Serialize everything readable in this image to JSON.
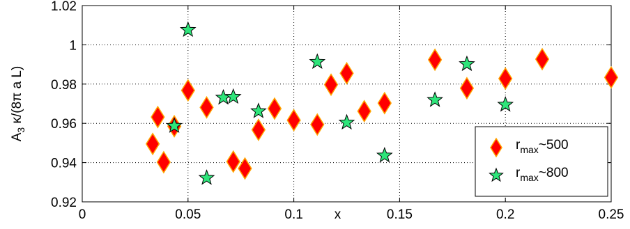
{
  "chart_data": {
    "type": "scatter",
    "title": "",
    "xlabel": "x",
    "ylabel": "A₃ κ/(8π a L)",
    "xlim": [
      0,
      0.25
    ],
    "ylim": [
      0.92,
      1.02
    ],
    "grid": true,
    "legend_position": "bottom-right",
    "x_ticks": [
      "0",
      "0.05",
      "0.1",
      "0.15",
      "0.2",
      "0.25"
    ],
    "y_ticks": [
      "0.92",
      "0.94",
      "0.96",
      "0.98",
      "1",
      "1.02"
    ],
    "series": [
      {
        "name": "r_max~500",
        "marker": "diamond",
        "color": "#ff0000",
        "edge_color": "#ffa500",
        "points": [
          [
            0.0333,
            0.9495
          ],
          [
            0.0357,
            0.9632
          ],
          [
            0.0385,
            0.9402
          ],
          [
            0.0435,
            0.9585
          ],
          [
            0.05,
            0.9768
          ],
          [
            0.0588,
            0.9681
          ],
          [
            0.0714,
            0.9405
          ],
          [
            0.0769,
            0.937
          ],
          [
            0.0833,
            0.9567
          ],
          [
            0.0909,
            0.9675
          ],
          [
            0.1,
            0.9616
          ],
          [
            0.1111,
            0.9594
          ],
          [
            0.1176,
            0.9797
          ],
          [
            0.125,
            0.9855
          ],
          [
            0.1333,
            0.9662
          ],
          [
            0.1429,
            0.9703
          ],
          [
            0.1667,
            0.9924
          ],
          [
            0.1818,
            0.9779
          ],
          [
            0.2,
            0.9828
          ],
          [
            0.2174,
            0.9927
          ],
          [
            0.25,
            0.9834
          ]
        ]
      },
      {
        "name": "r_max~800",
        "marker": "star",
        "color": "#2ee57a",
        "edge_color": "#000000",
        "points": [
          [
            0.0435,
            0.9587
          ],
          [
            0.05,
            1.0076
          ],
          [
            0.0588,
            0.9322
          ],
          [
            0.0667,
            0.9731
          ],
          [
            0.0714,
            0.9735
          ],
          [
            0.0833,
            0.9662
          ],
          [
            0.1111,
            0.9913
          ],
          [
            0.125,
            0.9604
          ],
          [
            0.1429,
            0.9436
          ],
          [
            0.1667,
            0.9719
          ],
          [
            0.1818,
            0.9902
          ],
          [
            0.2,
            0.9695
          ]
        ]
      }
    ],
    "legend": [
      {
        "label_main": "r",
        "label_sub": "max",
        "label_tail": "~500"
      },
      {
        "label_main": "r",
        "label_sub": "max",
        "label_tail": "~800"
      }
    ],
    "ylabel_parts": {
      "main": "A",
      "sub": "3",
      "tail": " κ/(8π a L)"
    }
  }
}
